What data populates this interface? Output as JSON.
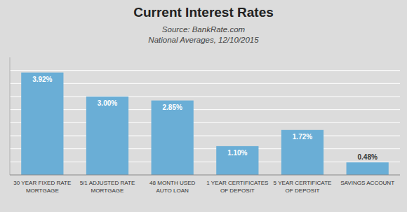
{
  "chart_data": {
    "type": "bar",
    "title": "Current Interest Rates",
    "subtitle": "Source: BankRate.com\nNational Averages, 12/10/2015",
    "categories": [
      "30 YEAR FIXED RATE\nMORTGAGE",
      "5/1 ADJUSTED RATE\nMORTGAGE",
      "48 MONTH USED\nAUTO LOAN",
      "1 YEAR CERTIFICATES\nOF DEPOSIT",
      "5 YEAR CERTIFICATE\nOF DEPOSIT",
      "SAVINGS ACCOUNT"
    ],
    "values": [
      3.92,
      3.0,
      2.85,
      1.1,
      1.72,
      0.48
    ],
    "value_labels": [
      "3.92%",
      "3.00%",
      "2.85%",
      "1.10%",
      "1.72%",
      "0.48%"
    ],
    "color": "#6aaed6",
    "ylim": [
      0,
      4.5
    ],
    "yticks": [
      0.5,
      1,
      1.5,
      2,
      2.5,
      3,
      3.5,
      4
    ],
    "grid": true,
    "data_labels": true,
    "tick_labels": "x"
  }
}
